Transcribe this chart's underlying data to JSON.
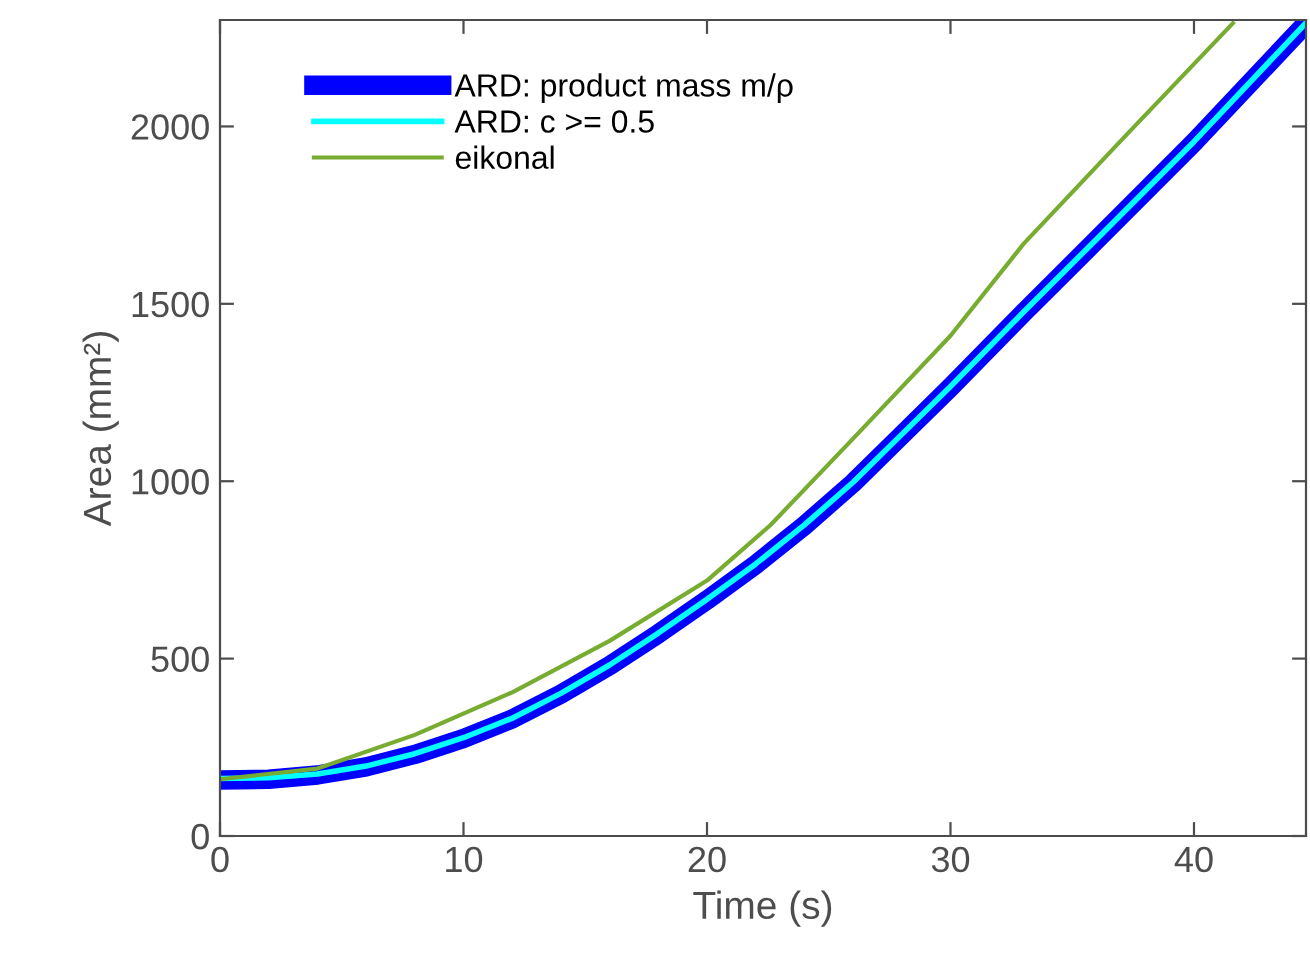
{
  "chart_data": {
    "type": "line",
    "xlabel": "Time (s)",
    "ylabel": "Area (mm²)",
    "xlim": [
      0,
      44.6
    ],
    "ylim": [
      0,
      2300
    ],
    "xticks": [
      0,
      10,
      20,
      30,
      40
    ],
    "yticks": [
      0,
      500,
      1000,
      1500,
      2000
    ],
    "grid": false,
    "legend": "top left",
    "marker": "none",
    "line_style": "solid",
    "series": [
      {
        "name": "ARD: product mass m/ρ",
        "color": "#0000ff",
        "x": [
          0,
          2,
          4,
          6,
          8,
          10,
          12,
          14,
          16,
          18,
          20,
          22,
          24,
          26,
          28,
          30,
          33,
          36,
          40,
          44.6
        ],
        "values": [
          158,
          160,
          172,
          195,
          230,
          275,
          330,
          400,
          480,
          570,
          665,
          765,
          875,
          995,
          1130,
          1265,
          1475,
          1680,
          1955,
          2290
        ]
      },
      {
        "name": "ARD: c >= 0.5",
        "color": "#00ffff",
        "x": [
          0,
          2,
          4,
          6,
          8,
          10,
          12,
          14,
          16,
          18,
          20,
          22,
          24,
          26,
          28,
          30,
          33,
          36,
          40,
          44.6
        ],
        "values": [
          162,
          164,
          175,
          197,
          232,
          277,
          332,
          402,
          482,
          572,
          667,
          767,
          877,
          997,
          1132,
          1267,
          1477,
          1682,
          1957,
          2292
        ]
      },
      {
        "name": "eikonal",
        "color": "#77ac30",
        "x": [
          0,
          4,
          8,
          12,
          16,
          20,
          22.6,
          26,
          30,
          33,
          37,
          41.6
        ],
        "values": [
          160,
          190,
          285,
          405,
          550,
          720,
          876,
          1120,
          1410,
          1669,
          1960,
          2291
        ]
      }
    ]
  }
}
